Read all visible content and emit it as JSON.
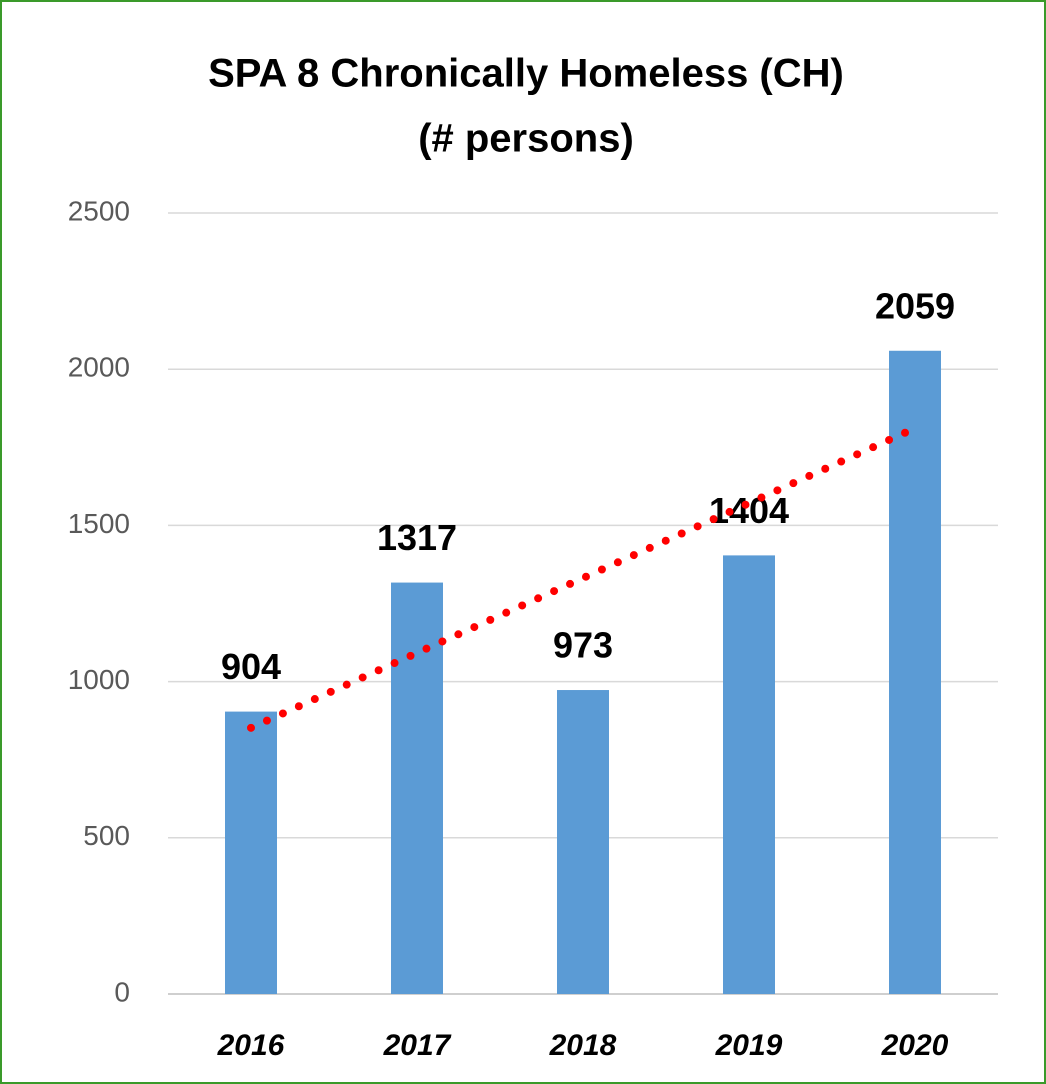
{
  "chart_data": {
    "type": "bar",
    "title": "SPA 8 Chronically Homeless (CH)",
    "subtitle": "(# persons)",
    "categories": [
      "2016",
      "2017",
      "2018",
      "2019",
      "2020"
    ],
    "values": [
      904,
      1317,
      973,
      1404,
      2059
    ],
    "color": "#5b9bd5",
    "ylim": [
      0,
      2500
    ],
    "yticks": [
      0,
      500,
      1000,
      1500,
      2000,
      2500
    ],
    "grid": true,
    "trendline": {
      "type": "linear",
      "color": "#ff0000",
      "values": [
        852,
        1811
      ]
    }
  }
}
